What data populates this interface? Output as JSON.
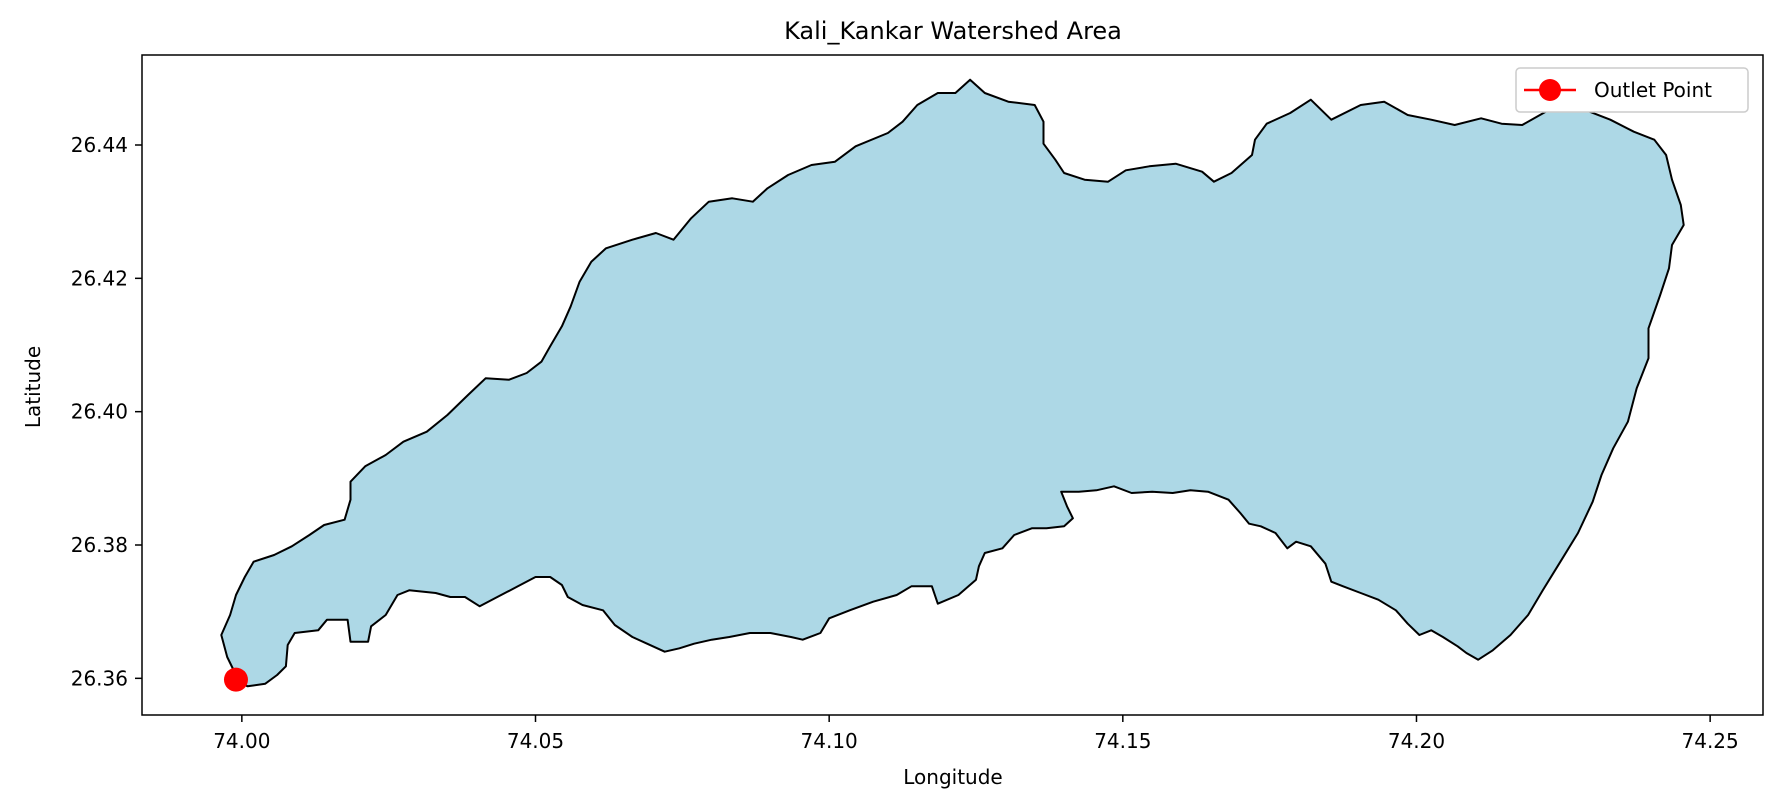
{
  "chart_data": {
    "type": "map",
    "title": "Kali_Kankar Watershed Area",
    "xlabel": "Longitude",
    "ylabel": "Latitude",
    "xlim": [
      73.983,
      74.259
    ],
    "ylim": [
      26.3545,
      26.4535
    ],
    "xticks": [
      74.0,
      74.05,
      74.1,
      74.15,
      74.2,
      74.25
    ],
    "xtick_labels": [
      "74.00",
      "74.05",
      "74.10",
      "74.15",
      "74.20",
      "74.25"
    ],
    "yticks": [
      26.36,
      26.38,
      26.4,
      26.42,
      26.44
    ],
    "ytick_labels": [
      "26.36",
      "26.38",
      "26.40",
      "26.42",
      "26.44"
    ],
    "watershed": {
      "fill_color": "#add8e6",
      "edge_color": "#000000",
      "boundary": [
        [
          74.0,
          26.3592
        ],
        [
          74.001,
          26.3588
        ],
        [
          74.004,
          26.3592
        ],
        [
          74.006,
          26.3605
        ],
        [
          74.0075,
          26.3618
        ],
        [
          74.0078,
          26.365
        ],
        [
          74.009,
          26.3668
        ],
        [
          74.013,
          26.3672
        ],
        [
          74.0145,
          26.3688
        ],
        [
          74.018,
          26.3688
        ],
        [
          74.0185,
          26.3655
        ],
        [
          74.0215,
          26.3655
        ],
        [
          74.022,
          26.3678
        ],
        [
          74.0245,
          26.3695
        ],
        [
          74.0265,
          26.3725
        ],
        [
          74.0285,
          26.3732
        ],
        [
          74.033,
          26.3728
        ],
        [
          74.0355,
          26.3722
        ],
        [
          74.038,
          26.3722
        ],
        [
          74.0405,
          26.3708
        ],
        [
          74.0435,
          26.3722
        ],
        [
          74.047,
          26.3738
        ],
        [
          74.05,
          26.3752
        ],
        [
          74.0525,
          26.3752
        ],
        [
          74.0545,
          26.374
        ],
        [
          74.0555,
          26.3722
        ],
        [
          74.058,
          26.371
        ],
        [
          74.0615,
          26.3702
        ],
        [
          74.0635,
          26.368
        ],
        [
          74.0665,
          26.3662
        ],
        [
          74.069,
          26.3652
        ],
        [
          74.072,
          26.364
        ],
        [
          74.0745,
          26.3645
        ],
        [
          74.077,
          26.3652
        ],
        [
          74.08,
          26.3658
        ],
        [
          74.083,
          26.3662
        ],
        [
          74.0865,
          26.3668
        ],
        [
          74.09,
          26.3668
        ],
        [
          74.0935,
          26.3662
        ],
        [
          74.0955,
          26.3658
        ],
        [
          74.0985,
          26.3668
        ],
        [
          74.1,
          26.369
        ],
        [
          74.1035,
          26.3702
        ],
        [
          74.1075,
          26.3715
        ],
        [
          74.1115,
          26.3725
        ],
        [
          74.114,
          26.3738
        ],
        [
          74.1175,
          26.3738
        ],
        [
          74.1185,
          26.3712
        ],
        [
          74.122,
          26.3725
        ],
        [
          74.125,
          26.3748
        ],
        [
          74.1255,
          26.3768
        ],
        [
          74.1265,
          26.3788
        ],
        [
          74.1295,
          26.3795
        ],
        [
          74.1315,
          26.3815
        ],
        [
          74.1345,
          26.3825
        ],
        [
          74.137,
          26.3825
        ],
        [
          74.14,
          26.3828
        ],
        [
          74.1415,
          26.384
        ],
        [
          74.1405,
          26.3858
        ],
        [
          74.1395,
          26.388
        ],
        [
          74.1425,
          26.388
        ],
        [
          74.1455,
          26.3882
        ],
        [
          74.1485,
          26.3888
        ],
        [
          74.1515,
          26.3878
        ],
        [
          74.155,
          26.388
        ],
        [
          74.1585,
          26.3878
        ],
        [
          74.1615,
          26.3882
        ],
        [
          74.1645,
          26.388
        ],
        [
          74.168,
          26.3868
        ],
        [
          74.17,
          26.3848
        ],
        [
          74.1715,
          26.3832
        ],
        [
          74.1735,
          26.3828
        ],
        [
          74.176,
          26.3818
        ],
        [
          74.178,
          26.3795
        ],
        [
          74.1795,
          26.3805
        ],
        [
          74.182,
          26.3798
        ],
        [
          74.1845,
          26.3772
        ],
        [
          74.1855,
          26.3745
        ],
        [
          74.1875,
          26.3738
        ],
        [
          74.1905,
          26.3728
        ],
        [
          74.1935,
          26.3718
        ],
        [
          74.1965,
          26.3702
        ],
        [
          74.1985,
          26.3682
        ],
        [
          74.2005,
          26.3665
        ],
        [
          74.2025,
          26.3672
        ],
        [
          74.2045,
          26.3662
        ],
        [
          74.207,
          26.3648
        ],
        [
          74.2085,
          26.3638
        ],
        [
          74.2105,
          26.3628
        ],
        [
          74.213,
          26.3642
        ],
        [
          74.216,
          26.3665
        ],
        [
          74.219,
          26.3695
        ],
        [
          74.2215,
          26.3732
        ],
        [
          74.2245,
          26.3775
        ],
        [
          74.2275,
          26.3818
        ],
        [
          74.23,
          26.3865
        ],
        [
          74.2315,
          26.3905
        ],
        [
          74.2335,
          26.3945
        ],
        [
          74.236,
          26.3985
        ],
        [
          74.2375,
          26.4035
        ],
        [
          74.2395,
          26.408
        ],
        [
          74.2395,
          26.4125
        ],
        [
          74.2415,
          26.4175
        ],
        [
          74.243,
          26.4215
        ],
        [
          74.2435,
          26.425
        ],
        [
          74.2455,
          26.428
        ],
        [
          74.245,
          26.431
        ],
        [
          74.2435,
          26.4348
        ],
        [
          74.2425,
          26.4385
        ],
        [
          74.2405,
          26.4408
        ],
        [
          74.237,
          26.442
        ],
        [
          74.233,
          26.4438
        ],
        [
          74.228,
          26.4455
        ],
        [
          74.2255,
          26.4465
        ],
        [
          74.222,
          26.445
        ],
        [
          74.218,
          26.443
        ],
        [
          74.2145,
          26.4432
        ],
        [
          74.211,
          26.444
        ],
        [
          74.2065,
          26.443
        ],
        [
          74.2025,
          26.4438
        ],
        [
          74.1985,
          26.4445
        ],
        [
          74.1945,
          26.4465
        ],
        [
          74.1905,
          26.446
        ],
        [
          74.1855,
          26.4438
        ],
        [
          74.182,
          26.4468
        ],
        [
          74.1785,
          26.4448
        ],
        [
          74.1745,
          26.4432
        ],
        [
          74.1725,
          26.4408
        ],
        [
          74.172,
          26.4385
        ],
        [
          74.1685,
          26.4358
        ],
        [
          74.1655,
          26.4345
        ],
        [
          74.1635,
          26.436
        ],
        [
          74.159,
          26.4372
        ],
        [
          74.1545,
          26.4368
        ],
        [
          74.1505,
          26.4362
        ],
        [
          74.1475,
          26.4345
        ],
        [
          74.1435,
          26.4348
        ],
        [
          74.14,
          26.4358
        ],
        [
          74.1385,
          26.4378
        ],
        [
          74.1365,
          26.4402
        ],
        [
          74.1365,
          26.4435
        ],
        [
          74.135,
          26.446
        ],
        [
          74.1305,
          26.4465
        ],
        [
          74.1265,
          26.4478
        ],
        [
          74.124,
          26.4498
        ],
        [
          74.1215,
          26.4478
        ],
        [
          74.1185,
          26.4478
        ],
        [
          74.115,
          26.446
        ],
        [
          74.1125,
          26.4435
        ],
        [
          74.11,
          26.4418
        ],
        [
          74.1045,
          26.4398
        ],
        [
          74.101,
          26.4375
        ],
        [
          74.097,
          26.437
        ],
        [
          74.093,
          26.4355
        ],
        [
          74.0895,
          26.4335
        ],
        [
          74.087,
          26.4315
        ],
        [
          74.0835,
          26.432
        ],
        [
          74.0795,
          26.4315
        ],
        [
          74.0765,
          26.429
        ],
        [
          74.0735,
          26.4258
        ],
        [
          74.0705,
          26.4268
        ],
        [
          74.0665,
          26.4258
        ],
        [
          74.062,
          26.4245
        ],
        [
          74.0595,
          26.4225
        ],
        [
          74.0575,
          26.4195
        ],
        [
          74.056,
          26.4158
        ],
        [
          74.0545,
          26.4128
        ],
        [
          74.0525,
          26.4098
        ],
        [
          74.051,
          26.4075
        ],
        [
          74.0485,
          26.4058
        ],
        [
          74.0455,
          26.4048
        ],
        [
          74.0415,
          26.405
        ],
        [
          74.0385,
          26.4025
        ],
        [
          74.035,
          26.3995
        ],
        [
          74.0315,
          26.397
        ],
        [
          74.0275,
          26.3955
        ],
        [
          74.0245,
          26.3935
        ],
        [
          74.021,
          26.3918
        ],
        [
          74.0185,
          26.3895
        ],
        [
          74.0185,
          26.3868
        ],
        [
          74.0175,
          26.3838
        ],
        [
          74.014,
          26.383
        ],
        [
          74.0115,
          26.3815
        ],
        [
          74.0085,
          26.3798
        ],
        [
          74.0055,
          26.3785
        ],
        [
          74.002,
          26.3775
        ],
        [
          74.0005,
          26.3752
        ],
        [
          73.999,
          26.3725
        ],
        [
          73.998,
          26.3695
        ],
        [
          73.9965,
          26.3665
        ],
        [
          73.9975,
          26.3632
        ],
        [
          73.999,
          26.3605
        ]
      ]
    },
    "series": [
      {
        "name": "Outlet Point",
        "x": 73.999,
        "y": 26.3598,
        "color": "#ff0000"
      }
    ],
    "legend": {
      "position": "top-right",
      "label": "Outlet Point"
    },
    "grid": false
  }
}
